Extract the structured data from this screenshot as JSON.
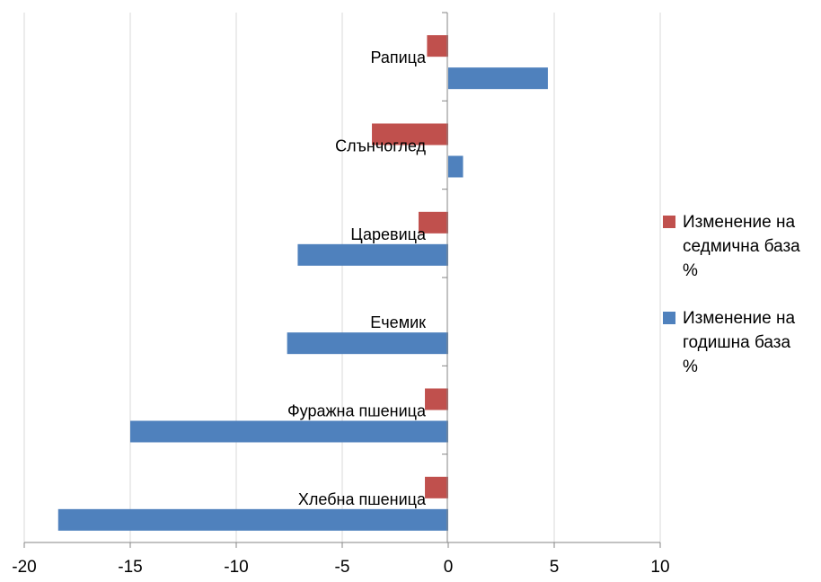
{
  "chart_data": {
    "type": "bar",
    "orientation": "horizontal",
    "categories": [
      "Хлебна пшеница",
      "Фуражна пшеница",
      "Ечемик",
      "Царевица",
      "Слънчоглед",
      "Рапица"
    ],
    "series": [
      {
        "name": "Изменение на годишна база %",
        "label_lines": [
          "Изменение на",
          "годишна база",
          "%"
        ],
        "color": "#4f81bd",
        "values": [
          -18.4,
          -15.0,
          -7.6,
          -7.1,
          0.7,
          4.7
        ]
      },
      {
        "name": "Изменение на седмична база %",
        "label_lines": [
          "Изменение на",
          "седмична база",
          "%"
        ],
        "color": "#c0504d",
        "values": [
          -1.1,
          -1.1,
          0.0,
          -1.4,
          -3.6,
          -1.0
        ]
      }
    ],
    "xlim": [
      -20,
      10
    ],
    "x_ticks": [
      -20,
      -15,
      -10,
      -5,
      0,
      5,
      10
    ],
    "grid": "vertical",
    "legend_position": "right"
  }
}
